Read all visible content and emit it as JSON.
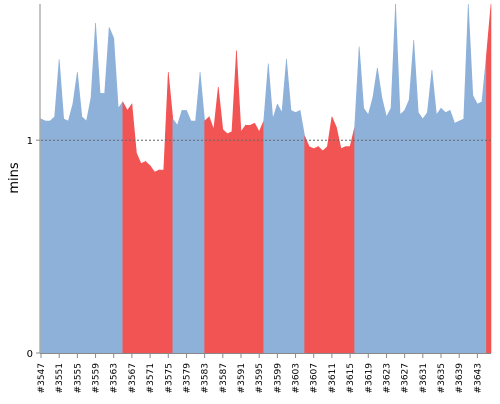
{
  "chart_data": {
    "type": "area",
    "ylabel": "mins",
    "ylim": [
      0,
      1.64
    ],
    "y_ticks": [
      0,
      1
    ],
    "reference_line": 1,
    "colors": {
      "good": "#8eb1da",
      "bad": "#f25454",
      "axis": "#888888",
      "reference": "#666666"
    },
    "x_tick_labels": [
      "#3547",
      "#3551",
      "#3555",
      "#3559",
      "#3563",
      "#3567",
      "#3571",
      "#3575",
      "#3579",
      "#3583",
      "#3587",
      "#3591",
      "#3595",
      "#3599",
      "#3603",
      "#3607",
      "#3611",
      "#3615",
      "#3619",
      "#3623",
      "#3627",
      "#3631",
      "#3635",
      "#3639",
      "#3643"
    ],
    "builds": [
      3547,
      3548,
      3549,
      3550,
      3551,
      3552,
      3553,
      3554,
      3555,
      3556,
      3557,
      3558,
      3559,
      3560,
      3561,
      3562,
      3563,
      3564,
      3565,
      3566,
      3567,
      3568,
      3569,
      3570,
      3571,
      3572,
      3573,
      3574,
      3575,
      3576,
      3577,
      3578,
      3579,
      3580,
      3581,
      3582,
      3583,
      3584,
      3585,
      3586,
      3587,
      3588,
      3589,
      3590,
      3591,
      3592,
      3593,
      3594,
      3595,
      3596,
      3597,
      3598,
      3599,
      3600,
      3601,
      3602,
      3603,
      3604,
      3605,
      3606,
      3607,
      3608,
      3609,
      3610,
      3611,
      3612,
      3613,
      3614,
      3615,
      3616,
      3617,
      3618,
      3619,
      3620,
      3621,
      3622,
      3623,
      3624,
      3625,
      3626,
      3627,
      3628,
      3629,
      3630,
      3631,
      3632,
      3633,
      3634,
      3635,
      3636,
      3637,
      3638,
      3639,
      3640,
      3641,
      3642,
      3643,
      3644,
      3645,
      3646
    ],
    "values": [
      1.1,
      1.09,
      1.09,
      1.11,
      1.38,
      1.1,
      1.09,
      1.17,
      1.32,
      1.11,
      1.09,
      1.2,
      1.55,
      1.22,
      1.22,
      1.53,
      1.48,
      1.15,
      1.18,
      1.14,
      1.17,
      0.94,
      0.89,
      0.9,
      0.88,
      0.85,
      0.86,
      0.86,
      1.32,
      1.1,
      1.07,
      1.14,
      1.14,
      1.09,
      1.09,
      1.32,
      1.09,
      1.11,
      1.05,
      1.25,
      1.05,
      1.03,
      1.04,
      1.42,
      1.04,
      1.07,
      1.07,
      1.08,
      1.04,
      1.09,
      1.36,
      1.1,
      1.17,
      1.13,
      1.38,
      1.14,
      1.13,
      1.14,
      1.02,
      0.97,
      0.96,
      0.97,
      0.95,
      0.97,
      1.11,
      1.06,
      0.96,
      0.97,
      0.97,
      1.06,
      1.44,
      1.15,
      1.12,
      1.2,
      1.34,
      1.2,
      1.11,
      1.15,
      1.64,
      1.12,
      1.14,
      1.19,
      1.47,
      1.13,
      1.1,
      1.13,
      1.33,
      1.12,
      1.15,
      1.13,
      1.14,
      1.08,
      1.09,
      1.1,
      1.64,
      1.21,
      1.17,
      1.18,
      1.4,
      1.64
    ],
    "status": [
      "good",
      "good",
      "good",
      "good",
      "good",
      "good",
      "good",
      "good",
      "good",
      "good",
      "good",
      "good",
      "good",
      "good",
      "good",
      "good",
      "good",
      "good",
      "good",
      "bad",
      "bad",
      "bad",
      "bad",
      "bad",
      "bad",
      "bad",
      "bad",
      "bad",
      "bad",
      "bad",
      "good",
      "good",
      "good",
      "good",
      "good",
      "good",
      "good",
      "bad",
      "bad",
      "bad",
      "bad",
      "bad",
      "bad",
      "bad",
      "bad",
      "bad",
      "bad",
      "bad",
      "bad",
      "bad",
      "good",
      "good",
      "good",
      "good",
      "good",
      "good",
      "good",
      "good",
      "good",
      "bad",
      "bad",
      "bad",
      "bad",
      "bad",
      "bad",
      "bad",
      "bad",
      "bad",
      "bad",
      "bad",
      "good",
      "good",
      "good",
      "good",
      "good",
      "good",
      "good",
      "good",
      "good",
      "good",
      "good",
      "good",
      "good",
      "good",
      "good",
      "good",
      "good",
      "good",
      "good",
      "good",
      "good",
      "good",
      "good",
      "good",
      "good",
      "good",
      "good",
      "good",
      "good",
      "bad"
    ]
  }
}
